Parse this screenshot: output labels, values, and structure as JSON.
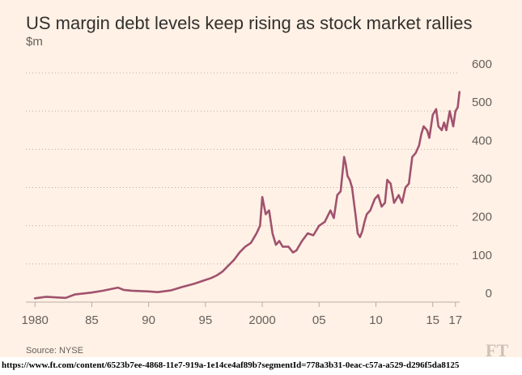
{
  "header": {
    "title": "US margin debt levels keep rising as stock market rallies",
    "unit": "$m"
  },
  "footer": {
    "source": "Source: NYSE",
    "logo": "FT",
    "url": "https://www.ft.com/content/6523b7ee-4868-11e7-919a-1e14ce4af89b?segmentId=778a3b31-0eac-c57a-a529-d296f5da8125"
  },
  "colors": {
    "background": "#fff1e5",
    "line": "#a0526e",
    "grid": "#b8ada3",
    "text": "#66605c"
  },
  "chart_data": {
    "type": "line",
    "title": "US margin debt levels keep rising as stock market rallies",
    "ylabel": "$m",
    "xlabel": "",
    "ylim": [
      0,
      600
    ],
    "xlim": [
      1979.2,
      2017.8
    ],
    "grid": true,
    "y_ticks": [
      {
        "v": 0,
        "label": "0"
      },
      {
        "v": 100,
        "label": "100"
      },
      {
        "v": 200,
        "label": "200"
      },
      {
        "v": 300,
        "label": "300"
      },
      {
        "v": 400,
        "label": "400"
      },
      {
        "v": 500,
        "label": "500"
      },
      {
        "v": 600,
        "label": "600"
      }
    ],
    "x_ticks": [
      {
        "v": 1980,
        "label": "1980"
      },
      {
        "v": 1985,
        "label": "85"
      },
      {
        "v": 1990,
        "label": "90"
      },
      {
        "v": 1995,
        "label": "95"
      },
      {
        "v": 2000,
        "label": "2000"
      },
      {
        "v": 2005,
        "label": "05"
      },
      {
        "v": 2010,
        "label": "10"
      },
      {
        "v": 2015,
        "label": "15"
      },
      {
        "v": 2017,
        "label": "17"
      }
    ],
    "series": [
      {
        "x": [
          1980,
          1981,
          1982,
          1982.7,
          1983.5,
          1985,
          1986,
          1987.3,
          1987.8,
          1988.5,
          1990,
          1990.8,
          1992,
          1993,
          1994,
          1994.8,
          1995.5,
          1996,
          1996.5,
          1997,
          1997.5,
          1998,
          1998.5,
          1999,
          1999.5,
          1999.8,
          2000,
          2000.3,
          2000.6,
          2000.9,
          2001.2,
          2001.5,
          2001.8,
          2002.3,
          2002.7,
          2003,
          2003.5,
          2004,
          2004.5,
          2005,
          2005.5,
          2006,
          2006.3,
          2006.6,
          2006.9,
          2007.2,
          2007.35,
          2007.5,
          2007.7,
          2007.9,
          2008.2,
          2008.4,
          2008.6,
          2008.8,
          2009,
          2009.2,
          2009.5,
          2009.9,
          2010.2,
          2010.5,
          2010.8,
          2011,
          2011.3,
          2011.6,
          2011.8,
          2012,
          2012.3,
          2012.6,
          2012.9,
          2013.2,
          2013.5,
          2013.8,
          2014,
          2014.2,
          2014.5,
          2014.7,
          2015,
          2015.3,
          2015.5,
          2015.8,
          2016,
          2016.2,
          2016.5,
          2016.8,
          2017,
          2017.2,
          2017.35
        ],
        "y": [
          10,
          14,
          12,
          11,
          20,
          25,
          30,
          38,
          32,
          30,
          28,
          26,
          31,
          40,
          48,
          56,
          63,
          70,
          80,
          95,
          110,
          130,
          145,
          155,
          180,
          200,
          275,
          230,
          240,
          180,
          150,
          160,
          145,
          145,
          130,
          135,
          160,
          180,
          175,
          200,
          210,
          240,
          220,
          280,
          290,
          380,
          360,
          330,
          320,
          300,
          230,
          180,
          170,
          185,
          210,
          230,
          240,
          270,
          280,
          250,
          260,
          320,
          310,
          260,
          270,
          280,
          260,
          300,
          310,
          380,
          390,
          410,
          440,
          460,
          450,
          430,
          490,
          505,
          460,
          450,
          470,
          450,
          500,
          460,
          500,
          510,
          550
        ]
      }
    ]
  }
}
